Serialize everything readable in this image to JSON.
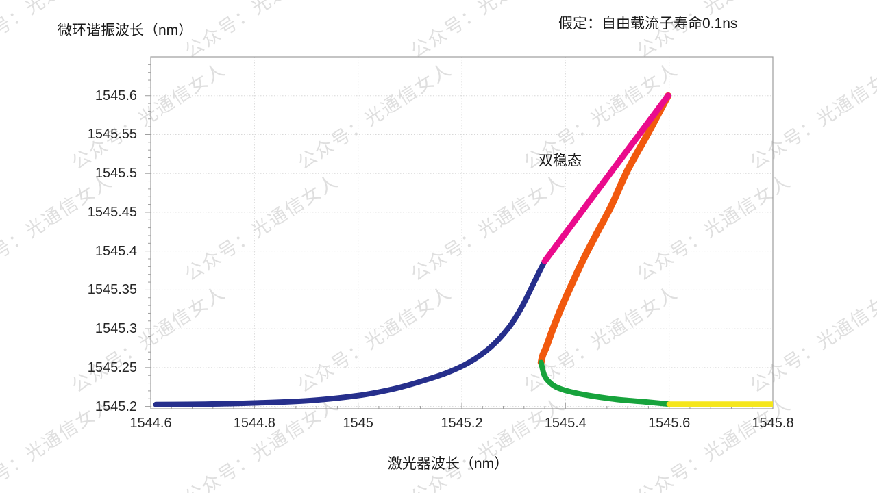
{
  "watermark": {
    "text": "公众号：光通信女人",
    "color": "rgba(185,185,185,0.45)"
  },
  "chart_data": {
    "type": "line",
    "title": "",
    "ylabel": "微环谐振波长（nm）",
    "xlabel": "激光器波长（nm）",
    "note": "假定：自由载流子寿命0.1ns",
    "annotation": {
      "text": "双稳态",
      "x": 1545.348,
      "y": 1545.515
    },
    "xlim": [
      1544.6,
      1545.8
    ],
    "ylim": [
      1545.197,
      1545.65
    ],
    "x_ticks": [
      1544.6,
      1544.8,
      1545,
      1545.2,
      1545.4,
      1545.6,
      1545.8
    ],
    "x_tick_labels": [
      "1544.6",
      "1544.8",
      "1545",
      "1545.2",
      "1545.4",
      "1545.6",
      "1545.8"
    ],
    "y_ticks": [
      1545.2,
      1545.25,
      1545.3,
      1545.35,
      1545.4,
      1545.45,
      1545.5,
      1545.55,
      1545.6
    ],
    "y_tick_labels": [
      "1545.2",
      "1545.25",
      "1545.3",
      "1545.35",
      "1545.4",
      "1545.45",
      "1545.5",
      "1545.55",
      "1545.6"
    ],
    "x_minor_step": 0.04,
    "y_minor_step": 0.01,
    "grid": true,
    "legend": false,
    "colors": {
      "grid": "#d8d8d8",
      "border": "#9c9c9c",
      "text": "#262626"
    },
    "series": [
      {
        "id": "unstable-middle-branch",
        "color": "#f1590e",
        "width": 10,
        "points": [
          [
            1545.598,
            1545.6
          ],
          [
            1545.578,
            1545.575
          ],
          [
            1545.558,
            1545.55
          ],
          [
            1545.519,
            1545.503
          ],
          [
            1545.489,
            1545.459
          ],
          [
            1545.459,
            1545.421
          ],
          [
            1545.435,
            1545.39
          ],
          [
            1545.414,
            1545.36
          ],
          [
            1545.393,
            1545.3285
          ],
          [
            1545.375,
            1545.2985
          ],
          [
            1545.363,
            1545.2765
          ],
          [
            1545.356,
            1545.2655
          ],
          [
            1545.353,
            1545.2565
          ]
        ]
      },
      {
        "id": "lower-stable-bistable-branch",
        "color": "#17a33c",
        "width": 8,
        "points": [
          [
            1545.353,
            1545.2565
          ],
          [
            1545.359,
            1545.2405
          ],
          [
            1545.368,
            1545.232
          ],
          [
            1545.382,
            1545.225
          ],
          [
            1545.406,
            1545.2195
          ],
          [
            1545.446,
            1545.214
          ],
          [
            1545.499,
            1545.209
          ],
          [
            1545.552,
            1545.206
          ],
          [
            1545.6,
            1545.203
          ]
        ]
      },
      {
        "id": "stable-right-branch",
        "color": "#f5e61c",
        "width": 8,
        "points": [
          [
            1545.6,
            1545.203
          ],
          [
            1545.8,
            1545.203
          ]
        ]
      },
      {
        "id": "lower-stable-left-branch",
        "color": "#262f8c",
        "width": 8,
        "points": [
          [
            1544.61,
            1545.2025
          ],
          [
            1544.705,
            1545.203
          ],
          [
            1544.8,
            1545.2045
          ],
          [
            1544.905,
            1545.2075
          ],
          [
            1545.0,
            1545.214
          ],
          [
            1545.065,
            1545.222
          ],
          [
            1545.115,
            1545.231
          ],
          [
            1545.17,
            1545.243
          ],
          [
            1545.215,
            1545.257
          ],
          [
            1545.255,
            1545.276
          ],
          [
            1545.29,
            1545.301
          ],
          [
            1545.315,
            1545.327
          ],
          [
            1545.336,
            1545.355
          ],
          [
            1545.35,
            1545.374
          ],
          [
            1545.36,
            1545.387
          ]
        ]
      },
      {
        "id": "upper-stable-bistable-branch",
        "color": "#ea0b8c",
        "width": 9,
        "points": [
          [
            1545.36,
            1545.387
          ],
          [
            1545.48,
            1545.4945
          ],
          [
            1545.598,
            1545.6
          ]
        ]
      }
    ]
  }
}
